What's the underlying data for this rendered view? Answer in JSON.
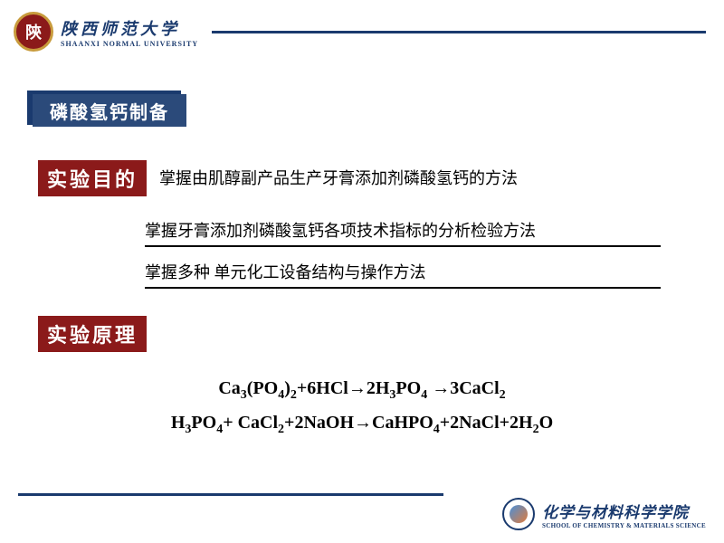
{
  "header": {
    "logo_char": "陝",
    "univ_cn": "陕西师范大学",
    "univ_en": "SHAANXI NORMAL UNIVERSITY"
  },
  "title": "磷酸氢钙制备",
  "section1": {
    "label": "实验目的",
    "line1": "掌握由肌醇副产品生产牙膏添加剂磷酸氢钙的方法",
    "line2": "掌握牙膏添加剂磷酸氢钙各项技术指标的分析检验方法",
    "line3": "掌握多种 单元化工设备结构与操作方法"
  },
  "section2": {
    "label": "实验原理"
  },
  "footer": {
    "cn": "化学与材料科学学院",
    "en": "SCHOOL OF CHEMISTRY & MATERIALS SCIENCE"
  },
  "colors": {
    "navy": "#1a3a6e",
    "maroon": "#8b1a1a",
    "gold": "#c89b3c"
  }
}
